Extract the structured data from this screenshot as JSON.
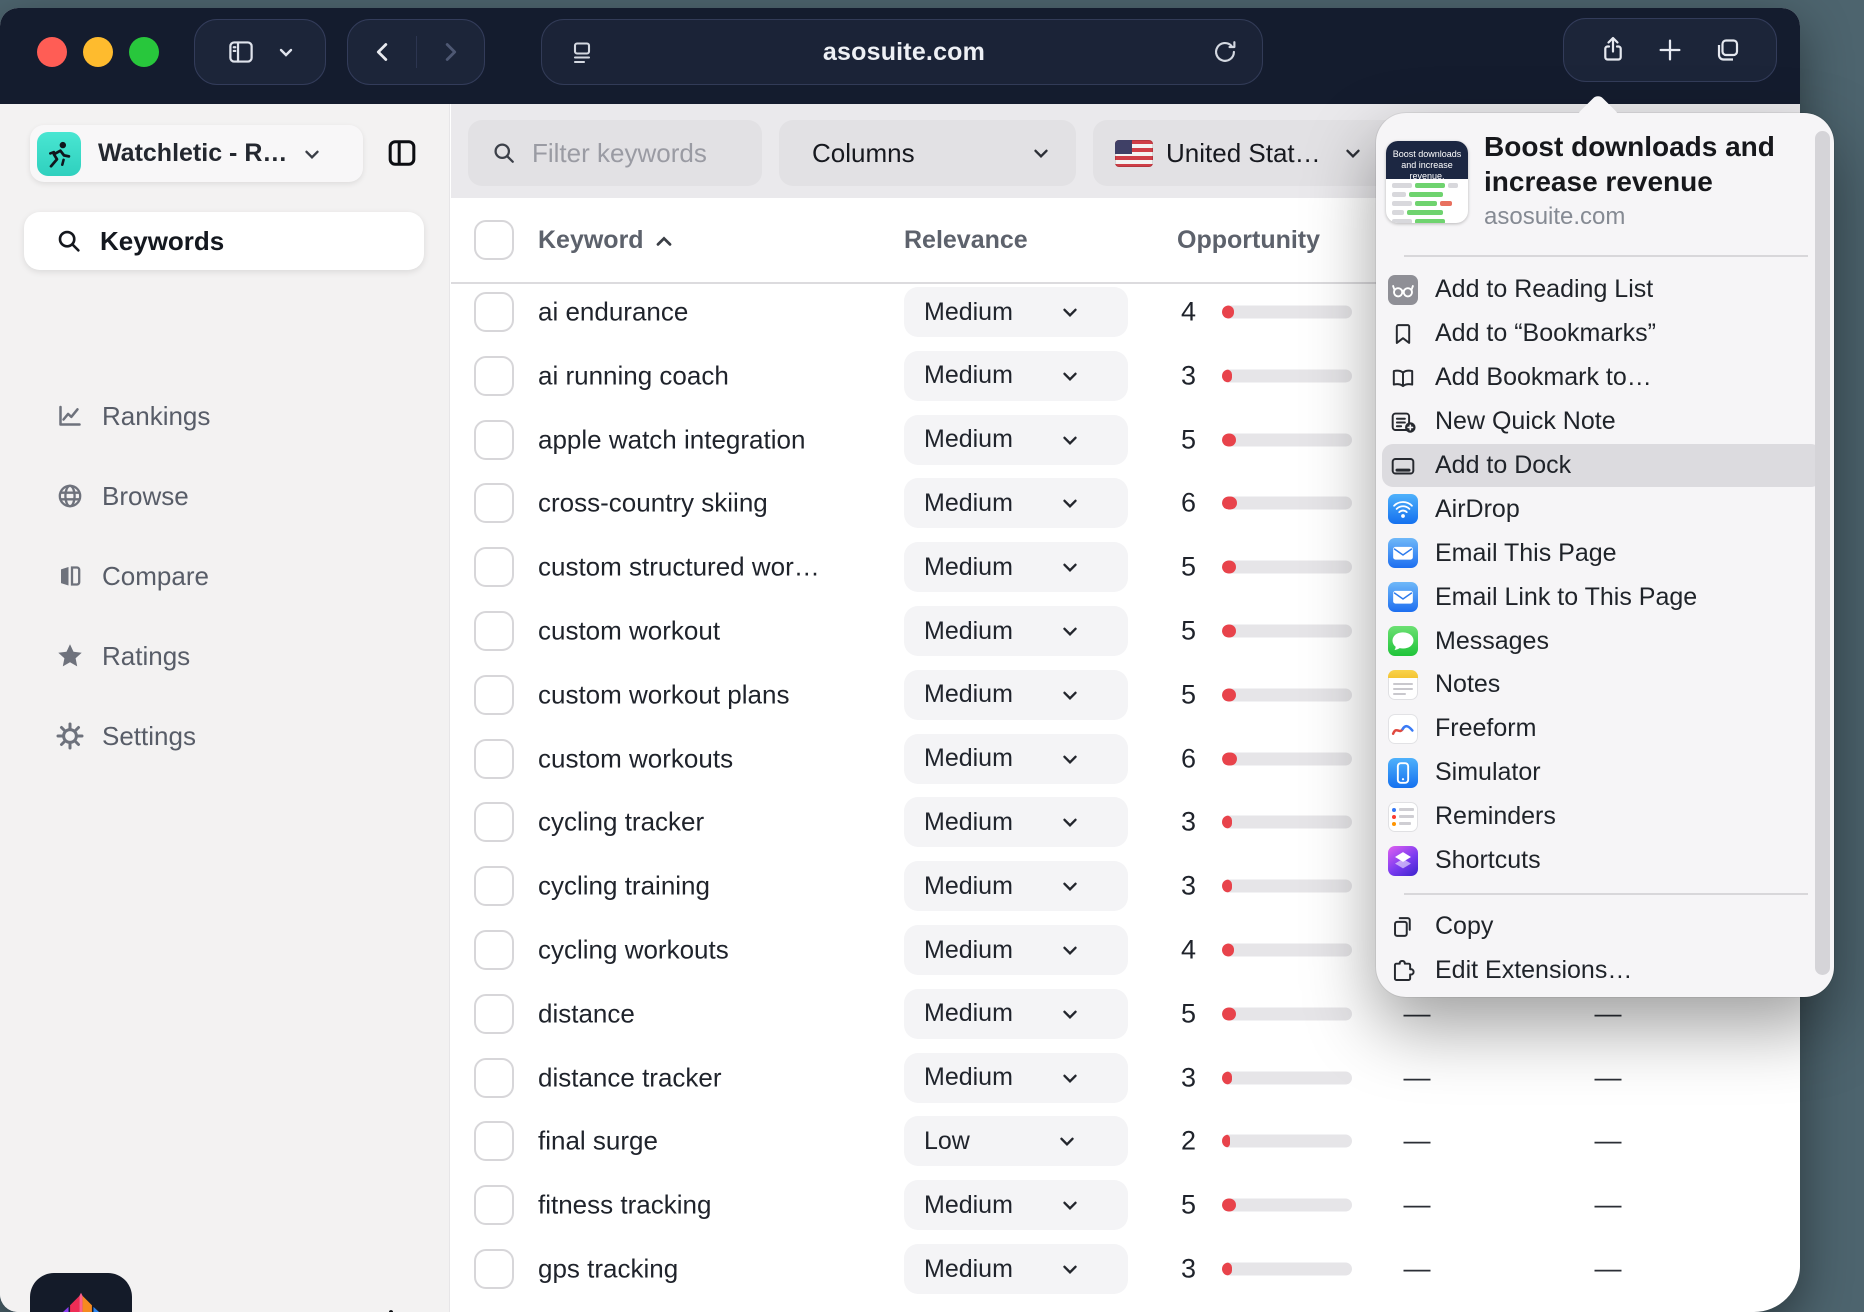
{
  "desktop": {
    "wallpaper_color": "#4d646e"
  },
  "browser": {
    "url": "asosuite.com",
    "toolbar_accent": "#141c2e"
  },
  "sidebar": {
    "workspace": {
      "label": "Watchletic - R…",
      "icon": "runner-app"
    },
    "selected_item": {
      "label": "Keywords",
      "icon": "search"
    },
    "items": [
      {
        "label": "Rankings",
        "icon": "rankings-chart"
      },
      {
        "label": "Browse",
        "icon": "globe"
      },
      {
        "label": "Compare",
        "icon": "compare-panels"
      },
      {
        "label": "Ratings",
        "icon": "star"
      },
      {
        "label": "Settings",
        "icon": "gear"
      }
    ]
  },
  "filters": {
    "search_placeholder": "Filter keywords",
    "columns_label": "Columns",
    "country_label": "United Stat…"
  },
  "table": {
    "headers": {
      "keyword": "Keyword",
      "relevance": "Relevance",
      "opportunity": "Opportunity"
    },
    "empty_cell": "—",
    "rows": [
      {
        "keyword": "ai endurance",
        "relevance": "Medium",
        "opportunity": 4,
        "col4": "—",
        "col5": "—"
      },
      {
        "keyword": "ai running coach",
        "relevance": "Medium",
        "opportunity": 3,
        "col4": "—",
        "col5": "—"
      },
      {
        "keyword": "apple watch integration",
        "relevance": "Medium",
        "opportunity": 5,
        "col4": "—",
        "col5": "—"
      },
      {
        "keyword": "cross-country skiing",
        "relevance": "Medium",
        "opportunity": 6,
        "col4": "—",
        "col5": "—"
      },
      {
        "keyword": "custom structured wor…",
        "relevance": "Medium",
        "opportunity": 5,
        "col4": "—",
        "col5": "—"
      },
      {
        "keyword": "custom workout",
        "relevance": "Medium",
        "opportunity": 5,
        "col4": "—",
        "col5": "—"
      },
      {
        "keyword": "custom workout plans",
        "relevance": "Medium",
        "opportunity": 5,
        "col4": "—",
        "col5": "—"
      },
      {
        "keyword": "custom workouts",
        "relevance": "Medium",
        "opportunity": 6,
        "col4": "—",
        "col5": "—"
      },
      {
        "keyword": "cycling tracker",
        "relevance": "Medium",
        "opportunity": 3,
        "col4": "—",
        "col5": "—"
      },
      {
        "keyword": "cycling training",
        "relevance": "Medium",
        "opportunity": 3,
        "col4": "—",
        "col5": "—"
      },
      {
        "keyword": "cycling workouts",
        "relevance": "Medium",
        "opportunity": 4,
        "col4": "—",
        "col5": "—"
      },
      {
        "keyword": "distance",
        "relevance": "Medium",
        "opportunity": 5,
        "col4": "—",
        "col5": "—"
      },
      {
        "keyword": "distance tracker",
        "relevance": "Medium",
        "opportunity": 3,
        "col4": "—",
        "col5": "—"
      },
      {
        "keyword": "final surge",
        "relevance": "Low",
        "opportunity": 2,
        "col4": "—",
        "col5": "—"
      },
      {
        "keyword": "fitness tracking",
        "relevance": "Medium",
        "opportunity": 5,
        "col4": "—",
        "col5": "—"
      },
      {
        "keyword": "gps tracking",
        "relevance": "Medium",
        "opportunity": 3,
        "col4": "—",
        "col5": "—"
      }
    ],
    "opportunity_bar": {
      "track_color": "#e6e5e8",
      "fill_color": "#e8434b"
    }
  },
  "share_popover": {
    "preview": {
      "title": "Boost downloads and increase revenue",
      "domain": "asosuite.com",
      "thumb_lines": [
        "Boost downloads",
        "and increase revenue."
      ]
    },
    "items": [
      {
        "label": "Add to Reading List",
        "icon": "reading-list"
      },
      {
        "label": "Add to “Bookmarks”",
        "icon": "bookmark"
      },
      {
        "label": "Add Bookmark to…",
        "icon": "open-book"
      },
      {
        "label": "New Quick Note",
        "icon": "quick-note"
      },
      {
        "label": "Add to Dock",
        "icon": "add-to-dock",
        "highlighted": true
      },
      {
        "label": "AirDrop",
        "icon": "airdrop"
      },
      {
        "label": "Email This Page",
        "icon": "mail"
      },
      {
        "label": "Email Link to This Page",
        "icon": "mail"
      },
      {
        "label": "Messages",
        "icon": "messages"
      },
      {
        "label": "Notes",
        "icon": "notes"
      },
      {
        "label": "Freeform",
        "icon": "freeform"
      },
      {
        "label": "Simulator",
        "icon": "simulator"
      },
      {
        "label": "Reminders",
        "icon": "reminders"
      },
      {
        "label": "Shortcuts",
        "icon": "shortcuts"
      }
    ],
    "footer_items": [
      {
        "label": "Copy",
        "icon": "copy"
      },
      {
        "label": "Edit Extensions…",
        "icon": "extensions"
      }
    ]
  }
}
